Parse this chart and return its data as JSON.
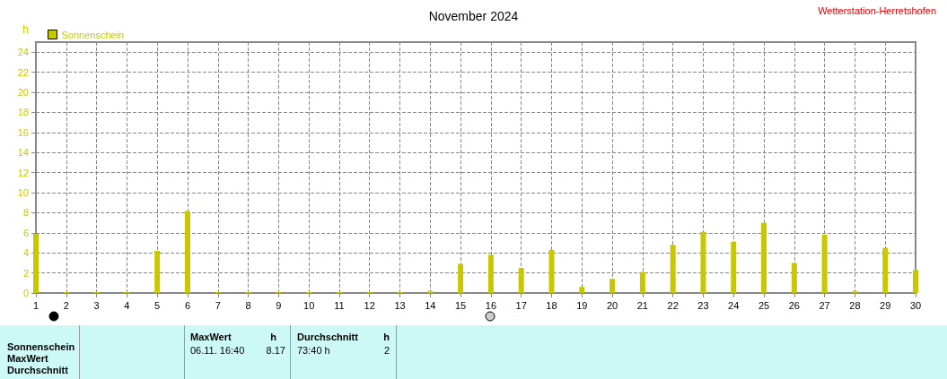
{
  "chart_data": {
    "type": "bar",
    "title": "November 2024",
    "ylabel": "h",
    "x": [
      1,
      2,
      3,
      4,
      5,
      6,
      7,
      8,
      9,
      10,
      11,
      12,
      13,
      14,
      15,
      16,
      17,
      18,
      19,
      20,
      21,
      22,
      23,
      24,
      25,
      26,
      27,
      28,
      29,
      30
    ],
    "series": [
      {
        "name": "Sonnenschein",
        "color": "#c8c800",
        "values": [
          5.9,
          0.1,
          0.1,
          0.1,
          4.2,
          8.17,
          0.1,
          0.1,
          0.1,
          0.1,
          0.1,
          0.1,
          0.1,
          0.2,
          2.9,
          3.8,
          2.5,
          4.3,
          0.6,
          1.4,
          2.1,
          4.8,
          6.1,
          5.1,
          7.0,
          3.0,
          5.8,
          0.2,
          4.5,
          2.3
        ]
      }
    ],
    "xlim": [
      1,
      30
    ],
    "xticks": [
      1,
      2,
      3,
      4,
      5,
      6,
      7,
      8,
      9,
      10,
      11,
      12,
      13,
      14,
      15,
      16,
      17,
      18,
      19,
      20,
      21,
      22,
      23,
      24,
      25,
      26,
      27,
      28,
      29,
      30
    ],
    "ylim": [
      0,
      25
    ],
    "yticks": [
      0,
      2,
      4,
      6,
      8,
      10,
      12,
      14,
      16,
      18,
      20,
      22,
      24
    ],
    "grid": true,
    "legend": "top left",
    "annotations": [
      "Wetterstation-Herretshofen",
      "Sonnenschein",
      "MaxWert",
      "Durchschnitt",
      "MaxWert",
      "h",
      "06.11.  16:40",
      "8.17",
      "Durchschnitt",
      "h",
      "73:40 h",
      "2"
    ]
  }
}
